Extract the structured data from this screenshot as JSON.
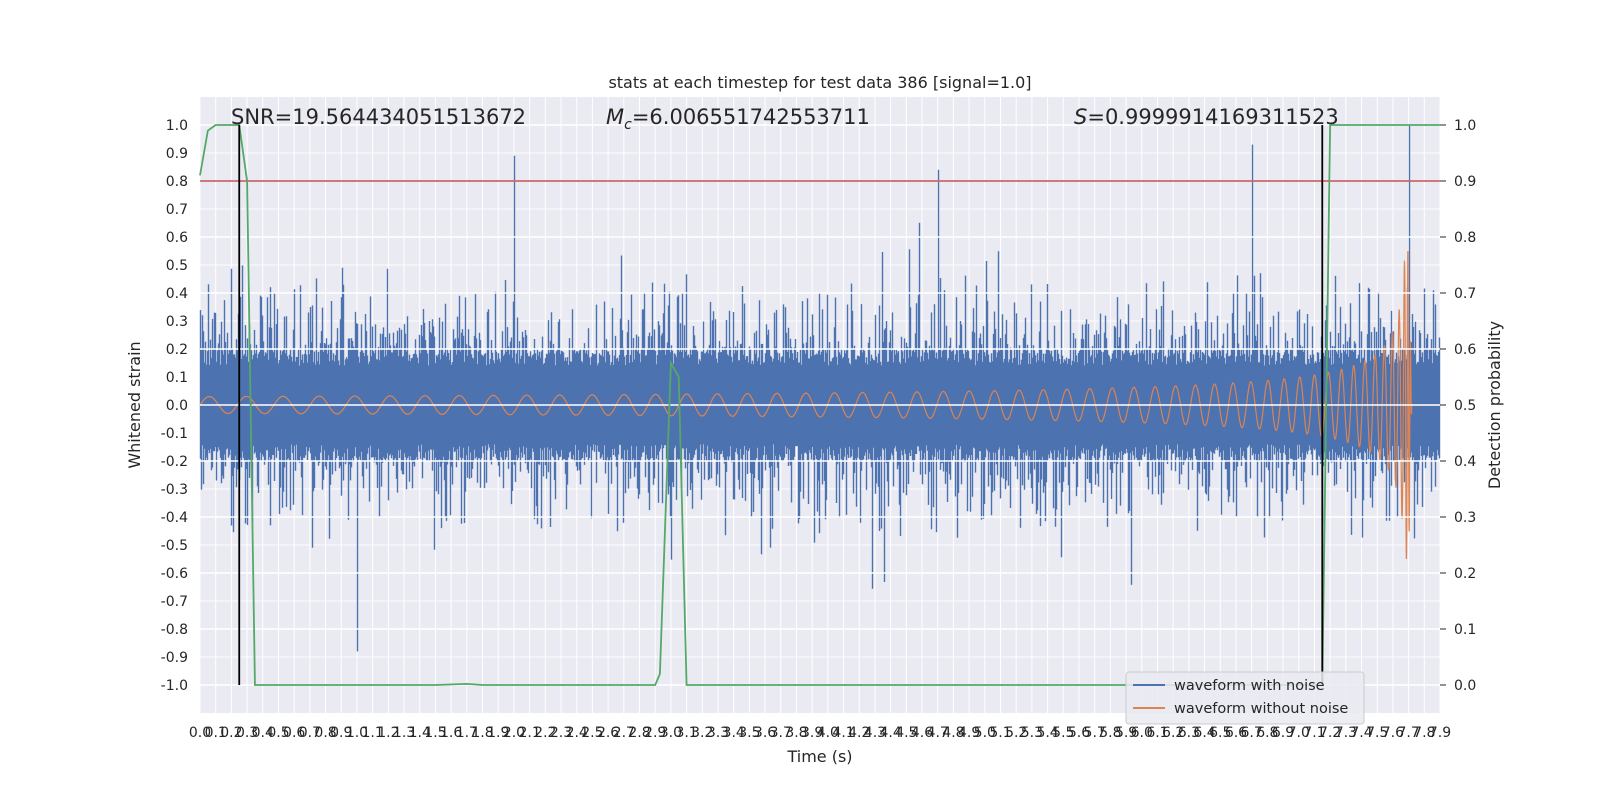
{
  "chart_data": {
    "type": "line",
    "title": "stats at each timestep for test data 386 [signal=1.0]",
    "xlabel": "Time (s)",
    "ylabel": "Whitened strain",
    "y2label": "Detection probability",
    "xlim": [
      0.0,
      7.9
    ],
    "ylim": [
      -1.1,
      1.1
    ],
    "y2lim": [
      -0.05,
      1.05
    ],
    "xticks": [
      "0.0",
      "0.1",
      "0.2",
      "0.3",
      "0.4",
      "0.5",
      "0.6",
      "0.7",
      "0.8",
      "0.9",
      "1.0",
      "1.1",
      "1.2",
      "1.3",
      "1.4",
      "1.5",
      "1.6",
      "1.7",
      "1.8",
      "1.9",
      "2.0",
      "2.1",
      "2.2",
      "2.3",
      "2.4",
      "2.5",
      "2.6",
      "2.7",
      "2.8",
      "2.9",
      "3.0",
      "3.1",
      "3.2",
      "3.3",
      "3.4",
      "3.5",
      "3.6",
      "3.7",
      "3.8",
      "3.9",
      "4.0",
      "4.1",
      "4.2",
      "4.3",
      "4.4",
      "4.5",
      "4.6",
      "4.7",
      "4.8",
      "4.9",
      "5.0",
      "5.1",
      "5.2",
      "5.3",
      "5.4",
      "5.5",
      "5.6",
      "5.7",
      "5.8",
      "5.9",
      "6.0",
      "6.1",
      "6.2",
      "6.3",
      "6.4",
      "6.5",
      "6.6",
      "6.7",
      "6.8",
      "6.9",
      "7.0",
      "7.1",
      "7.2",
      "7.3",
      "7.4",
      "7.5",
      "7.6",
      "7.7",
      "7.8",
      "7.9"
    ],
    "yticks": [
      "-1.0",
      "-0.9",
      "-0.8",
      "-0.7",
      "-0.6",
      "-0.5",
      "-0.4",
      "-0.3",
      "-0.2",
      "-0.1",
      "0.0",
      "0.1",
      "0.2",
      "0.3",
      "0.4",
      "0.5",
      "0.6",
      "0.7",
      "0.8",
      "0.9",
      "1.0"
    ],
    "y2ticks": [
      "0.0",
      "0.1",
      "0.2",
      "0.3",
      "0.4",
      "0.5",
      "0.6",
      "0.7",
      "0.8",
      "0.9",
      "1.0"
    ],
    "annotations": {
      "snr": "SNR=19.564434051513672",
      "mc_symbol": "M",
      "mc_sub": "c",
      "mc_value": "=6.006551742553711",
      "s_symbol": "S",
      "s_value": "=0.9999914169311523"
    },
    "legend": {
      "position": "lower-right",
      "entries": [
        {
          "label": "waveform with noise",
          "color": "#4c72b0"
        },
        {
          "label": "waveform without noise",
          "color": "#dd8452"
        }
      ]
    },
    "series": [
      {
        "name": "waveform with noise",
        "axis": "left",
        "color": "#4c72b0",
        "noise_std": 0.2,
        "notable_peaks": [
          {
            "x": 2.0,
            "y": 0.89
          },
          {
            "x": 4.7,
            "y": 0.84
          },
          {
            "x": 6.7,
            "y": 0.93
          },
          {
            "x": 7.7,
            "y": 1.0
          },
          {
            "x": 1.0,
            "y": -0.88
          }
        ]
      },
      {
        "name": "waveform without noise",
        "axis": "left",
        "color": "#dd8452",
        "amplitude_start": 0.03,
        "amplitude_peak": 0.55,
        "merger_time": 7.7,
        "end_time": 7.72
      },
      {
        "name": "detection probability",
        "axis": "right",
        "color": "#55a868",
        "x": [
          0.0,
          0.05,
          0.1,
          0.2,
          0.25,
          0.3,
          0.35,
          0.5,
          1.5,
          1.7,
          1.8,
          2.5,
          2.9,
          2.93,
          3.0,
          3.05,
          3.1,
          3.2,
          3.5,
          5.0,
          7.1,
          7.15,
          7.2,
          7.25,
          7.9
        ],
        "y": [
          0.91,
          0.99,
          1.0,
          1.0,
          1.0,
          0.9,
          0.0,
          0.0,
          0.0,
          0.002,
          0.0,
          0.0,
          0.0,
          0.02,
          0.575,
          0.55,
          0.0,
          0.0,
          0.0,
          0.0,
          0.0,
          0.0,
          1.0,
          1.0,
          1.0
        ]
      },
      {
        "name": "threshold",
        "axis": "right",
        "color": "#c44e52",
        "value": 0.9
      },
      {
        "name": "window marker",
        "axis": "right",
        "color": "#000000",
        "x": [
          0.25,
          7.15
        ],
        "y_range": [
          0.0,
          1.0
        ]
      }
    ]
  }
}
